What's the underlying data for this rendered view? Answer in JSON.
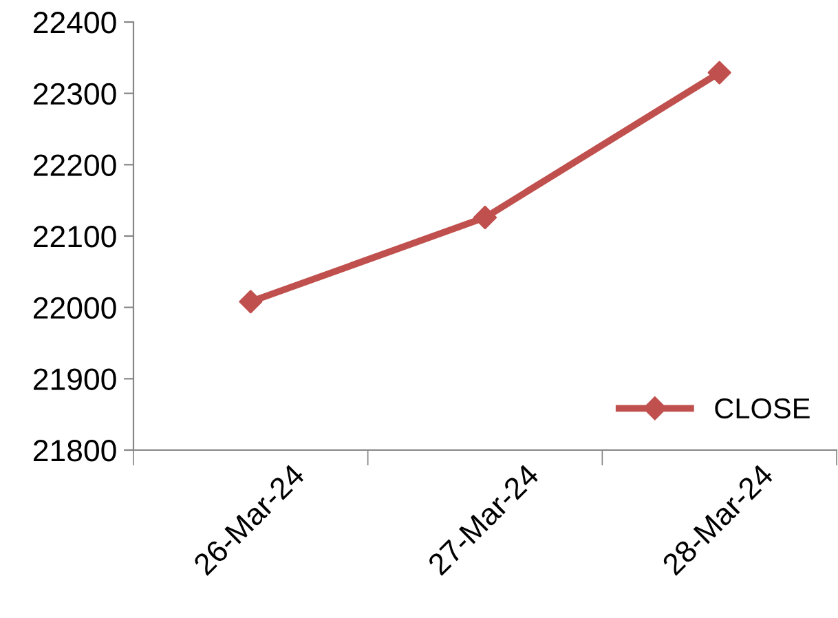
{
  "chart_data": {
    "type": "line",
    "categories": [
      "26-Mar-24",
      "27-Mar-24",
      "28-Mar-24"
    ],
    "series": [
      {
        "name": "CLOSE",
        "color": "#c0504d",
        "values": [
          22008,
          22126,
          22329
        ]
      }
    ],
    "ylim": [
      21800,
      22400
    ],
    "yticks": [
      21800,
      21900,
      22000,
      22100,
      22200,
      22300,
      22400
    ],
    "grid": false,
    "legend": "bottom right",
    "marker": "diamond",
    "line_style": "solid"
  }
}
